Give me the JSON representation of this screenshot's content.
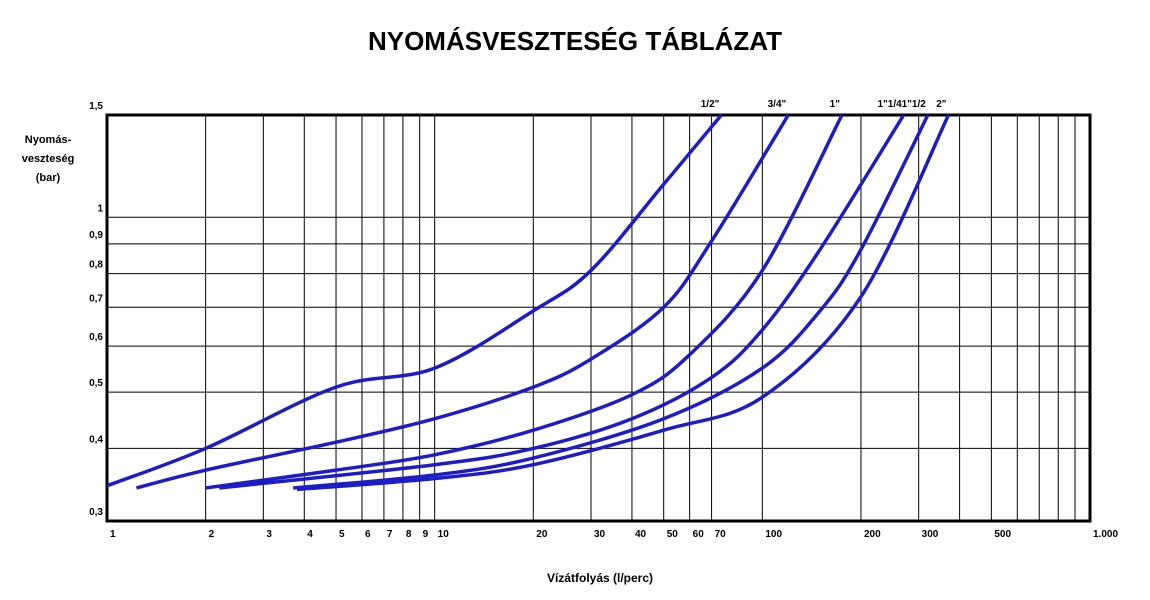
{
  "chart_data": {
    "type": "line",
    "title": "NYOMÁSVESZTESÉG TÁBLÁZAT",
    "ylabel": [
      "Nyomás-",
      "veszteség",
      "(bar)"
    ],
    "xlabel": "Vízátfolyás (l/perc)",
    "log_x": true,
    "log_y": true,
    "grid": true,
    "xlim": [
      1,
      1000
    ],
    "ylim": [
      0.3,
      1.5
    ],
    "xticks": [
      1,
      2,
      3,
      4,
      5,
      6,
      7,
      8,
      9,
      10,
      20,
      30,
      40,
      50,
      60,
      70,
      100,
      200,
      300,
      500,
      {
        "value": 1000,
        "label": "1.000"
      }
    ],
    "minor_xticks": [
      400,
      600,
      700,
      800,
      900
    ],
    "yticks": [
      {
        "value": 0.3,
        "label": "0,3"
      },
      {
        "value": 0.4,
        "label": "0,4"
      },
      {
        "value": 0.5,
        "label": "0,5"
      },
      {
        "value": 0.6,
        "label": "0,6"
      },
      {
        "value": 0.7,
        "label": "0,7"
      },
      {
        "value": 0.8,
        "label": "0,8"
      },
      {
        "value": 0.9,
        "label": "0,9"
      },
      1,
      {
        "value": 1.5,
        "label": "1,5"
      }
    ],
    "series": [
      {
        "name": "1/2\"",
        "color": "#1c1cc8",
        "x": [
          1,
          2,
          5,
          10,
          20,
          30,
          50,
          75
        ],
        "values": [
          0.345,
          0.4,
          0.51,
          0.55,
          0.69,
          0.81,
          1.14,
          1.5
        ]
      },
      {
        "name": "3/4\"",
        "color": "#1c1cc8",
        "x": [
          1.23,
          2,
          5,
          10,
          20,
          30,
          50,
          70,
          120
        ],
        "values": [
          0.342,
          0.367,
          0.41,
          0.45,
          0.51,
          0.57,
          0.7,
          0.91,
          1.5
        ]
      },
      {
        "name": "1\"",
        "color": "#1c1cc8",
        "x": [
          2,
          5,
          10,
          20,
          40,
          60,
          100,
          175
        ],
        "values": [
          0.342,
          0.367,
          0.39,
          0.43,
          0.495,
          0.58,
          0.81,
          1.5
        ]
      },
      {
        "name": "1\"1/4",
        "color": "#1c1cc8",
        "x": [
          2.2,
          10,
          20,
          40,
          70,
          100,
          150,
          270
        ],
        "values": [
          0.342,
          0.375,
          0.4,
          0.45,
          0.53,
          0.64,
          0.88,
          1.5
        ]
      },
      {
        "name": "1\"1/2",
        "color": "#1c1cc8",
        "x": [
          3.7,
          10,
          20,
          50,
          100,
          150,
          200,
          320
        ],
        "values": [
          0.342,
          0.36,
          0.385,
          0.45,
          0.55,
          0.69,
          0.88,
          1.5
        ]
      },
      {
        "name": "2\"",
        "color": "#1c1cc8",
        "x": [
          3.8,
          10,
          20,
          50,
          100,
          200,
          370
        ],
        "values": [
          0.34,
          0.355,
          0.375,
          0.43,
          0.49,
          0.73,
          1.5
        ]
      }
    ]
  }
}
